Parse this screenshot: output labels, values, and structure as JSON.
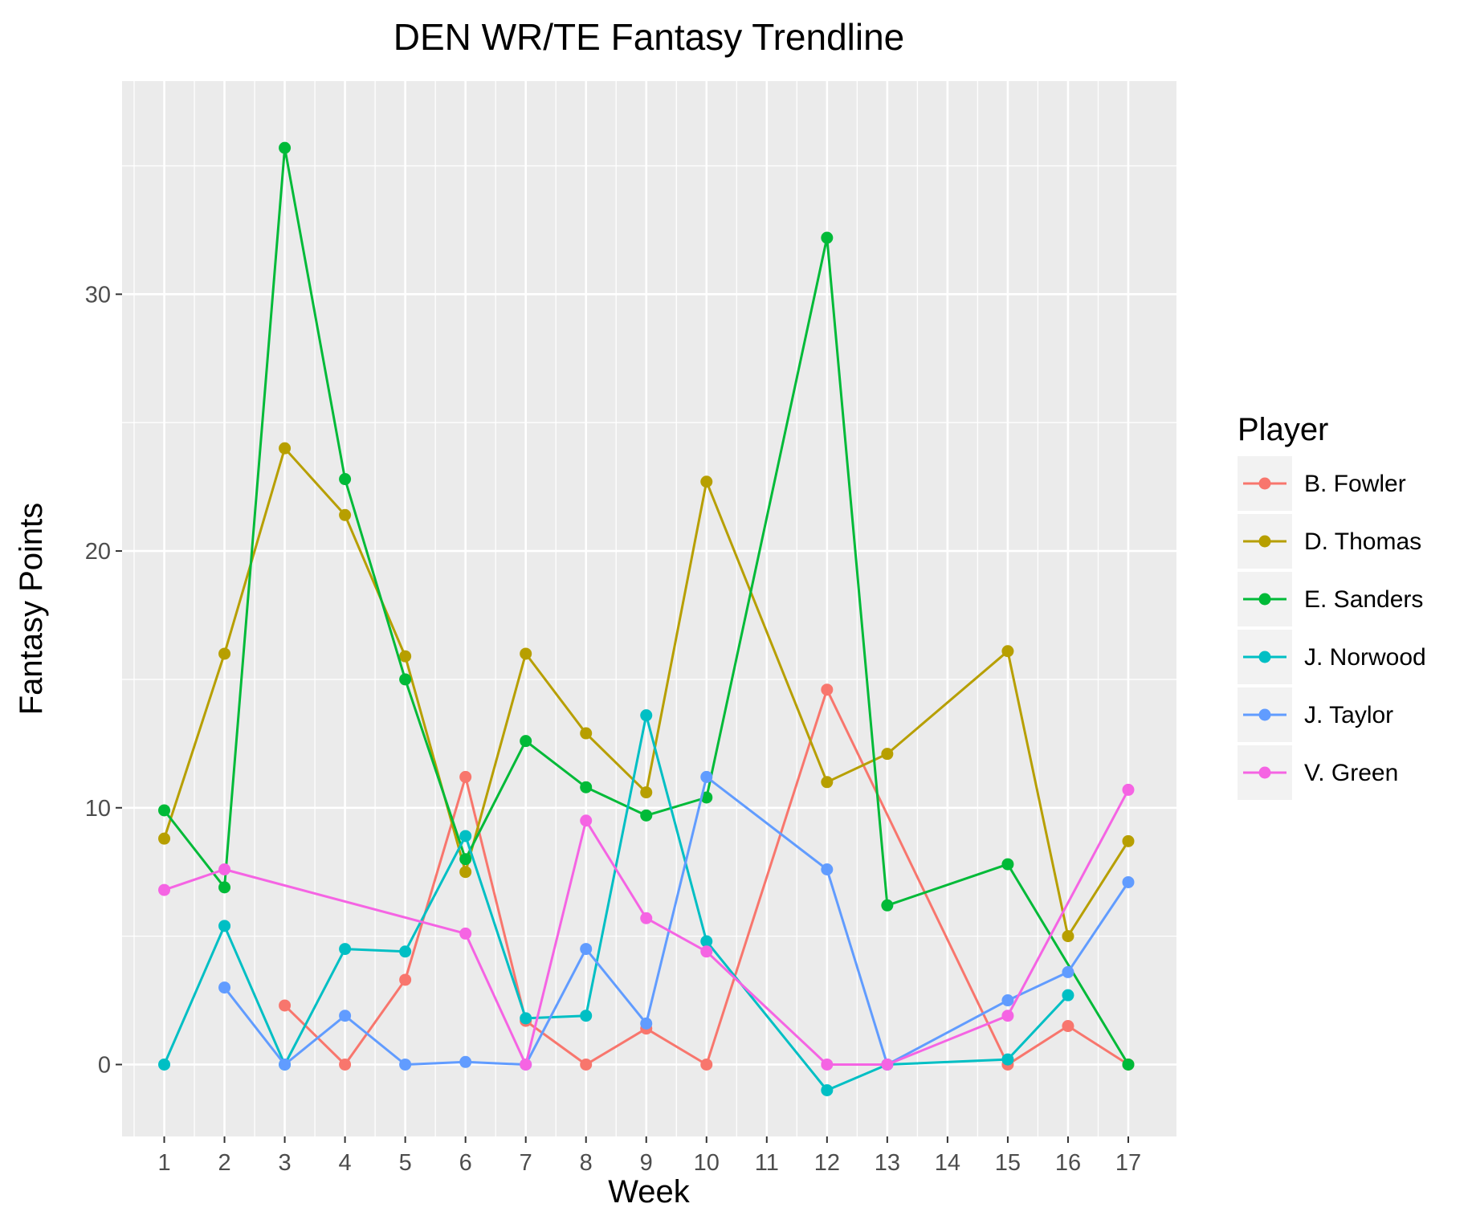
{
  "chart_data": {
    "type": "line",
    "title": "DEN WR/TE Fantasy Trendline",
    "xlabel": "Week",
    "ylabel": "Fantasy Points",
    "x_ticks": [
      "1",
      "2",
      "3",
      "4",
      "5",
      "6",
      "7",
      "8",
      "9",
      "10",
      "11",
      "12",
      "13",
      "14",
      "15",
      "16",
      "17"
    ],
    "y_ticks": [
      0,
      10,
      20,
      30
    ],
    "xlim": [
      0.3,
      17.8
    ],
    "ylim": [
      -2.8,
      38.3
    ],
    "grid": true,
    "legend": {
      "title": "Player",
      "position": "right"
    },
    "series": [
      {
        "name": "B. Fowler",
        "color": "#F8766D",
        "points": [
          [
            3,
            2.3
          ],
          [
            4,
            0
          ],
          [
            5,
            3.3
          ],
          [
            6,
            11.2
          ],
          [
            7,
            1.7
          ],
          [
            8,
            0
          ],
          [
            9,
            1.4
          ],
          [
            10,
            0
          ],
          [
            12,
            14.6
          ],
          [
            15,
            0
          ],
          [
            16,
            1.5
          ],
          [
            17,
            0
          ]
        ]
      },
      {
        "name": "D. Thomas",
        "color": "#B79F00",
        "points": [
          [
            1,
            8.8
          ],
          [
            2,
            16
          ],
          [
            3,
            24
          ],
          [
            4,
            21.4
          ],
          [
            5,
            15.9
          ],
          [
            6,
            7.5
          ],
          [
            7,
            16
          ],
          [
            8,
            12.9
          ],
          [
            9,
            10.6
          ],
          [
            10,
            22.7
          ],
          [
            12,
            11
          ],
          [
            13,
            12.1
          ],
          [
            15,
            16.1
          ],
          [
            16,
            5
          ],
          [
            17,
            8.7
          ]
        ]
      },
      {
        "name": "E. Sanders",
        "color": "#00BA38",
        "points": [
          [
            1,
            9.9
          ],
          [
            2,
            6.9
          ],
          [
            3,
            35.7
          ],
          [
            4,
            22.8
          ],
          [
            5,
            15
          ],
          [
            6,
            8
          ],
          [
            7,
            12.6
          ],
          [
            8,
            10.8
          ],
          [
            9,
            9.7
          ],
          [
            10,
            10.4
          ],
          [
            12,
            32.2
          ],
          [
            13,
            6.2
          ],
          [
            15,
            7.8
          ],
          [
            17,
            0
          ]
        ]
      },
      {
        "name": "J. Norwood",
        "color": "#00BFC4",
        "points": [
          [
            1,
            0
          ],
          [
            2,
            5.4
          ],
          [
            3,
            0
          ],
          [
            4,
            4.5
          ],
          [
            5,
            4.4
          ],
          [
            6,
            8.9
          ],
          [
            7,
            1.8
          ],
          [
            8,
            1.9
          ],
          [
            9,
            13.6
          ],
          [
            10,
            4.8
          ],
          [
            12,
            -1
          ],
          [
            13,
            0
          ],
          [
            15,
            0.2
          ],
          [
            16,
            2.7
          ]
        ]
      },
      {
        "name": "J. Taylor",
        "color": "#619CFF",
        "points": [
          [
            2,
            3
          ],
          [
            3,
            0
          ],
          [
            4,
            1.9
          ],
          [
            5,
            0
          ],
          [
            6,
            0.1
          ],
          [
            7,
            0
          ],
          [
            8,
            4.5
          ],
          [
            9,
            1.6
          ],
          [
            10,
            11.2
          ],
          [
            12,
            7.6
          ],
          [
            13,
            0
          ],
          [
            15,
            2.5
          ],
          [
            16,
            3.6
          ],
          [
            17,
            7.1
          ]
        ]
      },
      {
        "name": "V. Green",
        "color": "#F564E3",
        "points": [
          [
            1,
            6.8
          ],
          [
            2,
            7.6
          ],
          [
            6,
            5.1
          ],
          [
            7,
            0
          ],
          [
            8,
            9.5
          ],
          [
            9,
            5.7
          ],
          [
            10,
            4.4
          ],
          [
            12,
            0
          ],
          [
            13,
            0
          ],
          [
            15,
            1.9
          ],
          [
            17,
            10.7
          ]
        ]
      }
    ]
  }
}
